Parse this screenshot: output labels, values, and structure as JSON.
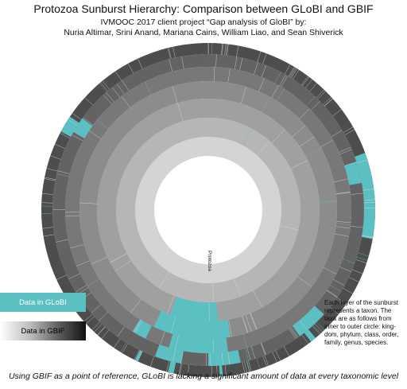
{
  "title": "Protozoa Sunburst Hierarchy: Comparison between GLoBI and GBIF",
  "subtitle_line1": "IVMOOC 2017 client project “Gap analysis of GloBI” by:",
  "subtitle_line2": "Nuria Altimar, Srini Anand, Mariana Cains, William Liao, and Sean Shiverick",
  "center_label": "Protozoa",
  "legend": {
    "globi_label": "Data in GLoBI",
    "gbif_label": "Data in GBIF",
    "globi_color": "#5cc0c2"
  },
  "note": "Each layer of the sunburst represents a taxon. The taxa are as follows from inner to outer circle: king-dom, phylum, class, order, family, genus, species.",
  "caption": "Using GBIF as a point of reference, GLoBI is lacking a significant amount of data at every taxonomic level",
  "ring_colors": [
    "#d4d4d4",
    "#b6b6b6",
    "#a0a0a0",
    "#8c8c8c",
    "#787878",
    "#636363",
    "#4d4d4d"
  ],
  "globi_highlights": [
    {
      "ring": 2,
      "start": 175,
      "end": 200
    },
    {
      "ring": 3,
      "start": 170,
      "end": 205
    },
    {
      "ring": 4,
      "start": 172,
      "end": 196
    },
    {
      "ring": 4,
      "start": 206,
      "end": 212
    },
    {
      "ring": 5,
      "start": 168,
      "end": 180
    },
    {
      "ring": 5,
      "start": 190,
      "end": 200
    },
    {
      "ring": 6,
      "start": 192,
      "end": 194
    },
    {
      "ring": 6,
      "start": 175,
      "end": 176
    },
    {
      "ring": 6,
      "start": 205,
      "end": 206
    },
    {
      "ring": 5,
      "start": 132,
      "end": 144
    },
    {
      "ring": 6,
      "start": 140,
      "end": 142
    },
    {
      "ring": 5,
      "start": 72,
      "end": 80
    },
    {
      "ring": 6,
      "start": 70,
      "end": 100
    },
    {
      "ring": 5,
      "start": 300,
      "end": 306
    },
    {
      "ring": 6,
      "start": 298,
      "end": 304
    }
  ]
}
